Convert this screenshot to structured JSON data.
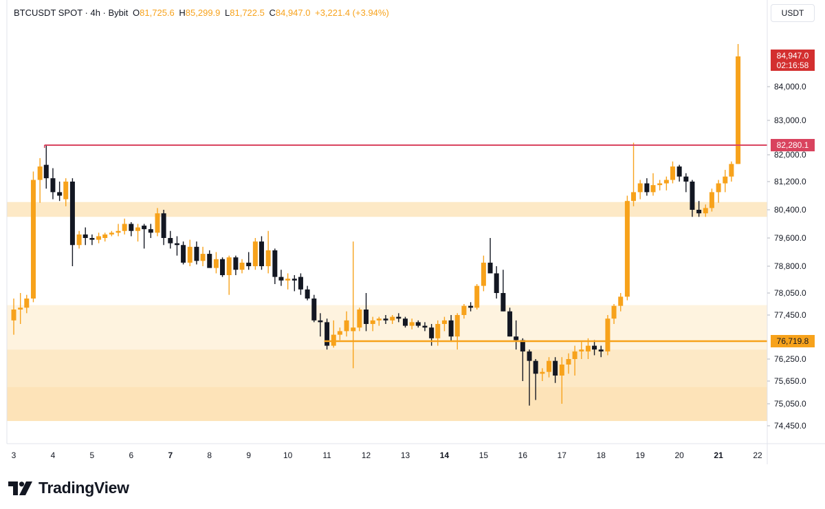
{
  "legend": {
    "symbol": "BTCUSDT SPOT · 4h · Bybit",
    "open_key": "O",
    "open": "81,725.6",
    "high_key": "H",
    "high": "85,299.9",
    "low_key": "L",
    "low": "81,722.5",
    "close_key": "C",
    "close": "84,947.0",
    "change": "+3,221.4 (+3.94%)"
  },
  "currency": "USDT",
  "brand": {
    "name": "TradingView"
  },
  "colors": {
    "up": "#f7a21b",
    "down": "#131722",
    "zone": "#fde9c6",
    "zone_light": "#fef3df",
    "resistance": "#d9435e",
    "support": "#f7a21b",
    "price_tag": "#d32f2f",
    "axis_text": "#131722"
  },
  "chart_data": {
    "type": "candlestick",
    "title": "BTCUSDT SPOT · 4h · Bybit",
    "y_axis_ticks": [
      {
        "label": "84,000.0",
        "value": 84000
      },
      {
        "label": "83,000.0",
        "value": 83000
      },
      {
        "label": "82,000.0",
        "value": 82000
      },
      {
        "label": "81,200.0",
        "value": 81200
      },
      {
        "label": "80,400.0",
        "value": 80400
      },
      {
        "label": "79,600.0",
        "value": 79600
      },
      {
        "label": "78,800.0",
        "value": 78800
      },
      {
        "label": "78,050.0",
        "value": 78050
      },
      {
        "label": "77,450.0",
        "value": 77450
      },
      {
        "label": "76,250.0",
        "value": 76250
      },
      {
        "label": "75,650.0",
        "value": 75650
      },
      {
        "label": "75,050.0",
        "value": 75050
      },
      {
        "label": "74,450.0",
        "value": 74450
      }
    ],
    "x_axis_ticks": [
      {
        "label": "3",
        "day": 3,
        "bold": false
      },
      {
        "label": "4",
        "day": 4,
        "bold": false
      },
      {
        "label": "5",
        "day": 5,
        "bold": false
      },
      {
        "label": "6",
        "day": 6,
        "bold": false
      },
      {
        "label": "7",
        "day": 7,
        "bold": true
      },
      {
        "label": "8",
        "day": 8,
        "bold": false
      },
      {
        "label": "9",
        "day": 9,
        "bold": false
      },
      {
        "label": "10",
        "day": 10,
        "bold": false
      },
      {
        "label": "11",
        "day": 11,
        "bold": false
      },
      {
        "label": "12",
        "day": 12,
        "bold": false
      },
      {
        "label": "13",
        "day": 13,
        "bold": false
      },
      {
        "label": "14",
        "day": 14,
        "bold": true
      },
      {
        "label": "15",
        "day": 15,
        "bold": false
      },
      {
        "label": "16",
        "day": 16,
        "bold": false
      },
      {
        "label": "17",
        "day": 17,
        "bold": false
      },
      {
        "label": "18",
        "day": 18,
        "bold": false
      },
      {
        "label": "19",
        "day": 19,
        "bold": false
      },
      {
        "label": "20",
        "day": 20,
        "bold": false
      },
      {
        "label": "21",
        "day": 21,
        "bold": true
      },
      {
        "label": "22",
        "day": 22,
        "bold": false
      }
    ],
    "resistance_line": {
      "value": 82280.1,
      "label": "82,280.1",
      "from_day": 3.82
    },
    "support_line": {
      "value": 76719.8,
      "label": "76,719.8",
      "from_day": 11.0
    },
    "last_price": {
      "value": 84947.0,
      "label": "84,947.0",
      "countdown": "02:16:58"
    },
    "zones": [
      {
        "from": 80200,
        "to": 80620,
        "shade": "dark"
      },
      {
        "from": 76500,
        "to": 77720,
        "shade": "light"
      },
      {
        "from": 75500,
        "to": 76500,
        "shade": "dark"
      },
      {
        "from": 74580,
        "to": 75500,
        "shade": "darker"
      }
    ],
    "candles": [
      {
        "day": 3.0,
        "o": 77300,
        "h": 77900,
        "l": 76900,
        "c": 77600
      },
      {
        "day": 3.17,
        "o": 77600,
        "h": 78050,
        "l": 77200,
        "c": 77650
      },
      {
        "day": 3.33,
        "o": 77650,
        "h": 78000,
        "l": 77500,
        "c": 77900
      },
      {
        "day": 3.5,
        "o": 77900,
        "h": 81500,
        "l": 77800,
        "c": 81250
      },
      {
        "day": 3.67,
        "o": 81250,
        "h": 81900,
        "l": 80600,
        "c": 81650
      },
      {
        "day": 3.83,
        "o": 81700,
        "h": 82280,
        "l": 81000,
        "c": 81300
      },
      {
        "day": 4.0,
        "o": 81300,
        "h": 81600,
        "l": 80700,
        "c": 80900
      },
      {
        "day": 4.17,
        "o": 80900,
        "h": 81200,
        "l": 80650,
        "c": 80800
      },
      {
        "day": 4.33,
        "o": 80700,
        "h": 81300,
        "l": 80500,
        "c": 81200
      },
      {
        "day": 4.5,
        "o": 81200,
        "h": 81300,
        "l": 78800,
        "c": 79400
      },
      {
        "day": 4.67,
        "o": 79400,
        "h": 79800,
        "l": 79300,
        "c": 79700
      },
      {
        "day": 4.83,
        "o": 79700,
        "h": 79900,
        "l": 79400,
        "c": 79600
      },
      {
        "day": 5.0,
        "o": 79600,
        "h": 79700,
        "l": 79400,
        "c": 79550
      },
      {
        "day": 5.17,
        "o": 79550,
        "h": 79750,
        "l": 79450,
        "c": 79650
      },
      {
        "day": 5.33,
        "o": 79600,
        "h": 79750,
        "l": 79500,
        "c": 79700
      },
      {
        "day": 5.5,
        "o": 79700,
        "h": 79800,
        "l": 79650,
        "c": 79750
      },
      {
        "day": 5.67,
        "o": 79750,
        "h": 80000,
        "l": 79650,
        "c": 79800
      },
      {
        "day": 5.83,
        "o": 79800,
        "h": 80150,
        "l": 79700,
        "c": 80000
      },
      {
        "day": 6.0,
        "o": 80000,
        "h": 80050,
        "l": 79650,
        "c": 79800
      },
      {
        "day": 6.17,
        "o": 79800,
        "h": 80000,
        "l": 79500,
        "c": 79900
      },
      {
        "day": 6.33,
        "o": 79950,
        "h": 80000,
        "l": 79300,
        "c": 79850
      },
      {
        "day": 6.5,
        "o": 79850,
        "h": 80000,
        "l": 79600,
        "c": 79750
      },
      {
        "day": 6.67,
        "o": 79750,
        "h": 80450,
        "l": 79650,
        "c": 80300
      },
      {
        "day": 6.83,
        "o": 80300,
        "h": 80400,
        "l": 79400,
        "c": 79600
      },
      {
        "day": 7.0,
        "o": 79600,
        "h": 79800,
        "l": 79300,
        "c": 79450
      },
      {
        "day": 7.17,
        "o": 79450,
        "h": 79650,
        "l": 79100,
        "c": 79400
      },
      {
        "day": 7.33,
        "o": 79400,
        "h": 79500,
        "l": 78850,
        "c": 78900
      },
      {
        "day": 7.5,
        "o": 78900,
        "h": 79550,
        "l": 78800,
        "c": 79350
      },
      {
        "day": 7.67,
        "o": 79350,
        "h": 79500,
        "l": 78850,
        "c": 78950
      },
      {
        "day": 7.83,
        "o": 78950,
        "h": 79350,
        "l": 78800,
        "c": 79150
      },
      {
        "day": 8.0,
        "o": 79150,
        "h": 79250,
        "l": 78800,
        "c": 78750
      },
      {
        "day": 8.17,
        "o": 78750,
        "h": 79200,
        "l": 78600,
        "c": 79000
      },
      {
        "day": 8.33,
        "o": 79000,
        "h": 79050,
        "l": 78500,
        "c": 78550
      },
      {
        "day": 8.5,
        "o": 78550,
        "h": 79100,
        "l": 78000,
        "c": 79050
      },
      {
        "day": 8.67,
        "o": 79050,
        "h": 79100,
        "l": 78550,
        "c": 78700
      },
      {
        "day": 8.83,
        "o": 78700,
        "h": 79000,
        "l": 78600,
        "c": 78900
      },
      {
        "day": 9.0,
        "o": 78900,
        "h": 79200,
        "l": 78700,
        "c": 78800
      },
      {
        "day": 9.17,
        "o": 78800,
        "h": 79600,
        "l": 78700,
        "c": 79500
      },
      {
        "day": 9.33,
        "o": 79500,
        "h": 79650,
        "l": 78700,
        "c": 78800
      },
      {
        "day": 9.5,
        "o": 78800,
        "h": 79800,
        "l": 78600,
        "c": 79250
      },
      {
        "day": 9.67,
        "o": 79250,
        "h": 79300,
        "l": 78300,
        "c": 78500
      },
      {
        "day": 9.83,
        "o": 78500,
        "h": 78700,
        "l": 78250,
        "c": 78400
      },
      {
        "day": 10.0,
        "o": 78400,
        "h": 78600,
        "l": 78150,
        "c": 78450
      },
      {
        "day": 10.17,
        "o": 78450,
        "h": 78550,
        "l": 78100,
        "c": 78400
      },
      {
        "day": 10.33,
        "o": 78500,
        "h": 78600,
        "l": 78000,
        "c": 78150
      },
      {
        "day": 10.5,
        "o": 78150,
        "h": 78250,
        "l": 77850,
        "c": 77900
      },
      {
        "day": 10.67,
        "o": 77900,
        "h": 78000,
        "l": 77250,
        "c": 77300
      },
      {
        "day": 10.83,
        "o": 77300,
        "h": 77500,
        "l": 76850,
        "c": 77250
      },
      {
        "day": 11.0,
        "o": 77250,
        "h": 77350,
        "l": 76500,
        "c": 76600
      },
      {
        "day": 11.17,
        "o": 76600,
        "h": 77300,
        "l": 76550,
        "c": 76900
      },
      {
        "day": 11.33,
        "o": 76900,
        "h": 77100,
        "l": 76750,
        "c": 77000
      },
      {
        "day": 11.5,
        "o": 77000,
        "h": 77550,
        "l": 76850,
        "c": 77300
      },
      {
        "day": 11.67,
        "o": 77000,
        "h": 79500,
        "l": 76000,
        "c": 77100
      },
      {
        "day": 11.83,
        "o": 77100,
        "h": 77650,
        "l": 77000,
        "c": 77600
      },
      {
        "day": 12.0,
        "o": 77600,
        "h": 78050,
        "l": 77000,
        "c": 77200
      },
      {
        "day": 12.17,
        "o": 77200,
        "h": 77400,
        "l": 77000,
        "c": 77300
      },
      {
        "day": 12.33,
        "o": 77300,
        "h": 77400,
        "l": 77150,
        "c": 77350
      },
      {
        "day": 12.5,
        "o": 77350,
        "h": 77450,
        "l": 77200,
        "c": 77300
      },
      {
        "day": 12.67,
        "o": 77300,
        "h": 77450,
        "l": 77200,
        "c": 77400
      },
      {
        "day": 12.83,
        "o": 77400,
        "h": 77500,
        "l": 77250,
        "c": 77350
      },
      {
        "day": 13.0,
        "o": 77350,
        "h": 77400,
        "l": 77100,
        "c": 77150
      },
      {
        "day": 13.17,
        "o": 77150,
        "h": 77350,
        "l": 77050,
        "c": 77250
      },
      {
        "day": 13.33,
        "o": 77250,
        "h": 77300,
        "l": 77100,
        "c": 77150
      },
      {
        "day": 13.5,
        "o": 77150,
        "h": 77250,
        "l": 77000,
        "c": 77100
      },
      {
        "day": 13.67,
        "o": 77100,
        "h": 77200,
        "l": 76600,
        "c": 76800
      },
      {
        "day": 13.83,
        "o": 76800,
        "h": 77300,
        "l": 76600,
        "c": 77200
      },
      {
        "day": 14.0,
        "o": 77200,
        "h": 77400,
        "l": 77000,
        "c": 77300
      },
      {
        "day": 14.17,
        "o": 77300,
        "h": 77450,
        "l": 76700,
        "c": 76850
      },
      {
        "day": 14.33,
        "o": 76850,
        "h": 77500,
        "l": 76500,
        "c": 77450
      },
      {
        "day": 14.5,
        "o": 77450,
        "h": 77750,
        "l": 77350,
        "c": 77700
      },
      {
        "day": 14.67,
        "o": 77700,
        "h": 77800,
        "l": 77550,
        "c": 77650
      },
      {
        "day": 14.83,
        "o": 77650,
        "h": 78300,
        "l": 77600,
        "c": 78250
      },
      {
        "day": 15.0,
        "o": 78250,
        "h": 79100,
        "l": 78100,
        "c": 78900
      },
      {
        "day": 15.17,
        "o": 78900,
        "h": 79600,
        "l": 78700,
        "c": 78600
      },
      {
        "day": 15.33,
        "o": 78600,
        "h": 78800,
        "l": 77900,
        "c": 78050
      },
      {
        "day": 15.5,
        "o": 78050,
        "h": 78700,
        "l": 77550,
        "c": 77550
      },
      {
        "day": 15.67,
        "o": 77550,
        "h": 77650,
        "l": 76850,
        "c": 76850
      },
      {
        "day": 15.83,
        "o": 76850,
        "h": 77300,
        "l": 76500,
        "c": 76750
      },
      {
        "day": 16.0,
        "o": 76750,
        "h": 76800,
        "l": 75650,
        "c": 76450
      },
      {
        "day": 16.17,
        "o": 76450,
        "h": 76500,
        "l": 75000,
        "c": 76200
      },
      {
        "day": 16.33,
        "o": 76200,
        "h": 76250,
        "l": 75150,
        "c": 75850
      },
      {
        "day": 16.5,
        "o": 75850,
        "h": 76000,
        "l": 75650,
        "c": 75900
      },
      {
        "day": 16.67,
        "o": 75900,
        "h": 76300,
        "l": 75750,
        "c": 76200
      },
      {
        "day": 16.83,
        "o": 76200,
        "h": 76300,
        "l": 75600,
        "c": 75800
      },
      {
        "day": 17.0,
        "o": 75800,
        "h": 76300,
        "l": 75050,
        "c": 76100
      },
      {
        "day": 17.17,
        "o": 76100,
        "h": 76400,
        "l": 75850,
        "c": 76250
      },
      {
        "day": 17.33,
        "o": 76250,
        "h": 76600,
        "l": 75800,
        "c": 76450
      },
      {
        "day": 17.5,
        "o": 76450,
        "h": 76700,
        "l": 76250,
        "c": 76500
      },
      {
        "day": 17.67,
        "o": 76450,
        "h": 76800,
        "l": 76250,
        "c": 76600
      },
      {
        "day": 17.83,
        "o": 76600,
        "h": 76750,
        "l": 76350,
        "c": 76500
      },
      {
        "day": 18.0,
        "o": 76500,
        "h": 76600,
        "l": 76300,
        "c": 76450
      },
      {
        "day": 18.17,
        "o": 76450,
        "h": 77450,
        "l": 76350,
        "c": 77350
      },
      {
        "day": 18.33,
        "o": 77350,
        "h": 77750,
        "l": 77200,
        "c": 77700
      },
      {
        "day": 18.5,
        "o": 77700,
        "h": 78050,
        "l": 77550,
        "c": 77950
      },
      {
        "day": 18.67,
        "o": 77950,
        "h": 80800,
        "l": 77850,
        "c": 80650
      },
      {
        "day": 18.83,
        "o": 80650,
        "h": 82350,
        "l": 80500,
        "c": 80900
      },
      {
        "day": 19.0,
        "o": 80900,
        "h": 81250,
        "l": 80700,
        "c": 81150
      },
      {
        "day": 19.17,
        "o": 81150,
        "h": 81300,
        "l": 80800,
        "c": 80900
      },
      {
        "day": 19.33,
        "o": 80900,
        "h": 81450,
        "l": 80800,
        "c": 81100
      },
      {
        "day": 19.5,
        "o": 81100,
        "h": 81250,
        "l": 80950,
        "c": 81150
      },
      {
        "day": 19.67,
        "o": 81150,
        "h": 81350,
        "l": 80950,
        "c": 81250
      },
      {
        "day": 19.83,
        "o": 81250,
        "h": 81800,
        "l": 81150,
        "c": 81650
      },
      {
        "day": 20.0,
        "o": 81650,
        "h": 81700,
        "l": 81200,
        "c": 81350
      },
      {
        "day": 20.17,
        "o": 81350,
        "h": 81450,
        "l": 80900,
        "c": 81200
      },
      {
        "day": 20.33,
        "o": 81200,
        "h": 81250,
        "l": 80200,
        "c": 80400
      },
      {
        "day": 20.5,
        "o": 80400,
        "h": 80650,
        "l": 80200,
        "c": 80300
      },
      {
        "day": 20.67,
        "o": 80300,
        "h": 80550,
        "l": 80200,
        "c": 80450
      },
      {
        "day": 20.83,
        "o": 80450,
        "h": 81000,
        "l": 80350,
        "c": 80900
      },
      {
        "day": 21.0,
        "o": 80900,
        "h": 81250,
        "l": 80600,
        "c": 81150
      },
      {
        "day": 21.17,
        "o": 81150,
        "h": 81550,
        "l": 80900,
        "c": 81350
      },
      {
        "day": 21.33,
        "o": 81350,
        "h": 81800,
        "l": 81200,
        "c": 81725.6
      },
      {
        "day": 21.5,
        "o": 81725.6,
        "h": 85299.9,
        "l": 81722.5,
        "c": 84947.0
      }
    ]
  }
}
